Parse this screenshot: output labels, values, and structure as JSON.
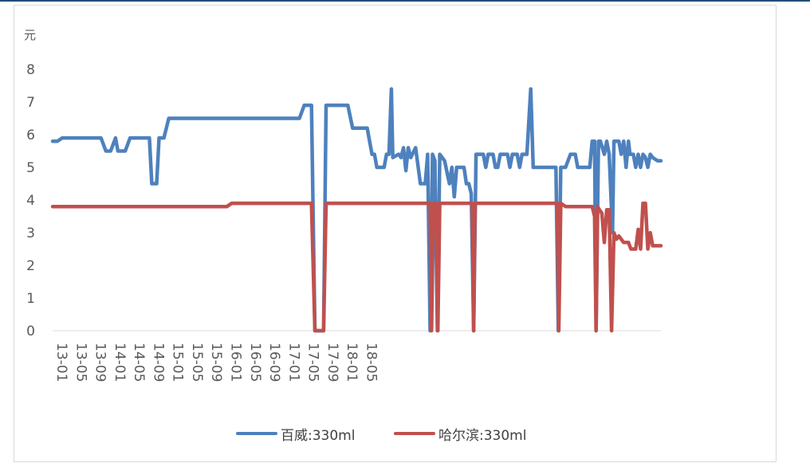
{
  "chart_data": {
    "type": "line",
    "ylabel": "元",
    "ylim": [
      0,
      8
    ],
    "yticks": [
      "0",
      "1",
      "2",
      "3",
      "4",
      "5",
      "6",
      "7",
      "8"
    ],
    "xticks": [
      "13-01",
      "13-05",
      "13-09",
      "14-01",
      "14-05",
      "14-09",
      "15-01",
      "15-05",
      "15-09",
      "16-01",
      "16-05",
      "16-09",
      "17-01",
      "17-05",
      "17-09",
      "18-01",
      "18-05"
    ],
    "x_start": "13-01",
    "x_end": "18-10",
    "grid": false,
    "legend_position": "bottom",
    "series": [
      {
        "name": "百威:330ml",
        "color": "#4e81bd",
        "points": [
          [
            0,
            5.8
          ],
          [
            1,
            5.8
          ],
          [
            2,
            5.9
          ],
          [
            10,
            5.9
          ],
          [
            11,
            5.5
          ],
          [
            12,
            5.5
          ],
          [
            13,
            5.9
          ],
          [
            13.5,
            5.5
          ],
          [
            15,
            5.5
          ],
          [
            16,
            5.9
          ],
          [
            20,
            5.9
          ],
          [
            20.5,
            4.5
          ],
          [
            21.5,
            4.5
          ],
          [
            22,
            5.9
          ],
          [
            23,
            5.9
          ],
          [
            24,
            6.5
          ],
          [
            51,
            6.5
          ],
          [
            52,
            6.9
          ],
          [
            53.5,
            6.9
          ],
          [
            54.2,
            0
          ],
          [
            56,
            0
          ],
          [
            56.5,
            6.9
          ],
          [
            61,
            6.9
          ],
          [
            62,
            6.2
          ],
          [
            65,
            6.2
          ],
          [
            66,
            5.4
          ],
          [
            66.5,
            5.4
          ],
          [
            67,
            5.0
          ],
          [
            68.5,
            5.0
          ],
          [
            69,
            5.4
          ],
          [
            69.5,
            5.4
          ],
          [
            70,
            7.4
          ],
          [
            70.3,
            5.3
          ],
          [
            71.5,
            5.4
          ],
          [
            72,
            5.3
          ],
          [
            72.5,
            5.6
          ],
          [
            73,
            4.9
          ],
          [
            73.5,
            5.6
          ],
          [
            74,
            5.3
          ],
          [
            75,
            5.6
          ],
          [
            76,
            4.5
          ],
          [
            77,
            4.5
          ],
          [
            77.5,
            5.4
          ],
          [
            78,
            0
          ],
          [
            78.5,
            5.4
          ],
          [
            79,
            5.2
          ],
          [
            79.5,
            0
          ],
          [
            80,
            5.4
          ],
          [
            81,
            5.2
          ],
          [
            82,
            4.5
          ],
          [
            82.5,
            5.0
          ],
          [
            83,
            4.1
          ],
          [
            83.5,
            5.0
          ],
          [
            85,
            5.0
          ],
          [
            85.5,
            4.5
          ],
          [
            86,
            4.5
          ],
          [
            86.5,
            4.2
          ],
          [
            87,
            0
          ],
          [
            87.5,
            5.4
          ],
          [
            89,
            5.4
          ],
          [
            89.5,
            5.0
          ],
          [
            90,
            5.4
          ],
          [
            91,
            5.4
          ],
          [
            91.5,
            5.0
          ],
          [
            92,
            5.0
          ],
          [
            92.5,
            5.4
          ],
          [
            94,
            5.4
          ],
          [
            94.5,
            5.0
          ],
          [
            95,
            5.4
          ],
          [
            96,
            5.4
          ],
          [
            96.5,
            5.0
          ],
          [
            97,
            5.4
          ],
          [
            98,
            5.4
          ],
          [
            98.8,
            7.4
          ],
          [
            99.3,
            5.0
          ],
          [
            104,
            5.0
          ],
          [
            104.5,
            0
          ],
          [
            105,
            5.0
          ],
          [
            106,
            5.0
          ],
          [
            107,
            5.4
          ],
          [
            108,
            5.4
          ],
          [
            108.5,
            5.0
          ],
          [
            111,
            5.0
          ],
          [
            111.5,
            5.8
          ],
          [
            112,
            5.8
          ],
          [
            112.3,
            0
          ],
          [
            112.8,
            5.8
          ],
          [
            113.2,
            5.8
          ],
          [
            114,
            5.4
          ],
          [
            114.5,
            5.8
          ],
          [
            115,
            5.4
          ],
          [
            115.7,
            3.0
          ],
          [
            116,
            5.8
          ],
          [
            117,
            5.8
          ],
          [
            117.5,
            5.4
          ],
          [
            118,
            5.8
          ],
          [
            118.5,
            5.0
          ],
          [
            119,
            5.8
          ],
          [
            119.3,
            5.4
          ],
          [
            120,
            5.4
          ],
          [
            120.5,
            5.0
          ],
          [
            121,
            5.4
          ],
          [
            121.5,
            5.0
          ],
          [
            122,
            5.4
          ],
          [
            122.5,
            5.3
          ],
          [
            123,
            5.0
          ],
          [
            123.5,
            5.4
          ],
          [
            124,
            5.3
          ],
          [
            125,
            5.2
          ],
          [
            125.7,
            5.2
          ]
        ]
      },
      {
        "name": "哈尔滨:330ml",
        "color": "#c0504d",
        "points": [
          [
            0,
            3.8
          ],
          [
            36,
            3.8
          ],
          [
            37,
            3.9
          ],
          [
            53.5,
            3.9
          ],
          [
            54.2,
            0
          ],
          [
            56,
            0
          ],
          [
            56.5,
            3.9
          ],
          [
            78,
            3.9
          ],
          [
            78.3,
            0
          ],
          [
            78.7,
            3.9
          ],
          [
            79.3,
            3.9
          ],
          [
            79.6,
            0
          ],
          [
            80,
            3.9
          ],
          [
            86.7,
            3.9
          ],
          [
            87,
            0
          ],
          [
            87.3,
            3.9
          ],
          [
            104.3,
            3.9
          ],
          [
            104.6,
            0
          ],
          [
            105,
            3.9
          ],
          [
            106,
            3.8
          ],
          [
            111.5,
            3.8
          ],
          [
            112,
            3.5
          ],
          [
            112.3,
            0
          ],
          [
            112.6,
            3.8
          ],
          [
            113,
            3.7
          ],
          [
            113.5,
            3.6
          ],
          [
            114,
            2.7
          ],
          [
            114.5,
            3.7
          ],
          [
            115,
            3.7
          ],
          [
            115.5,
            0
          ],
          [
            116,
            3.0
          ],
          [
            116.5,
            2.8
          ],
          [
            117,
            2.9
          ],
          [
            118,
            2.7
          ],
          [
            119,
            2.7
          ],
          [
            119.5,
            2.5
          ],
          [
            120.5,
            2.5
          ],
          [
            121,
            3.1
          ],
          [
            121.5,
            2.5
          ],
          [
            122,
            3.9
          ],
          [
            122.5,
            3.9
          ],
          [
            123,
            2.5
          ],
          [
            123.5,
            3.0
          ],
          [
            124,
            2.6
          ],
          [
            124.5,
            2.6
          ],
          [
            125.7,
            2.6
          ]
        ]
      }
    ]
  }
}
